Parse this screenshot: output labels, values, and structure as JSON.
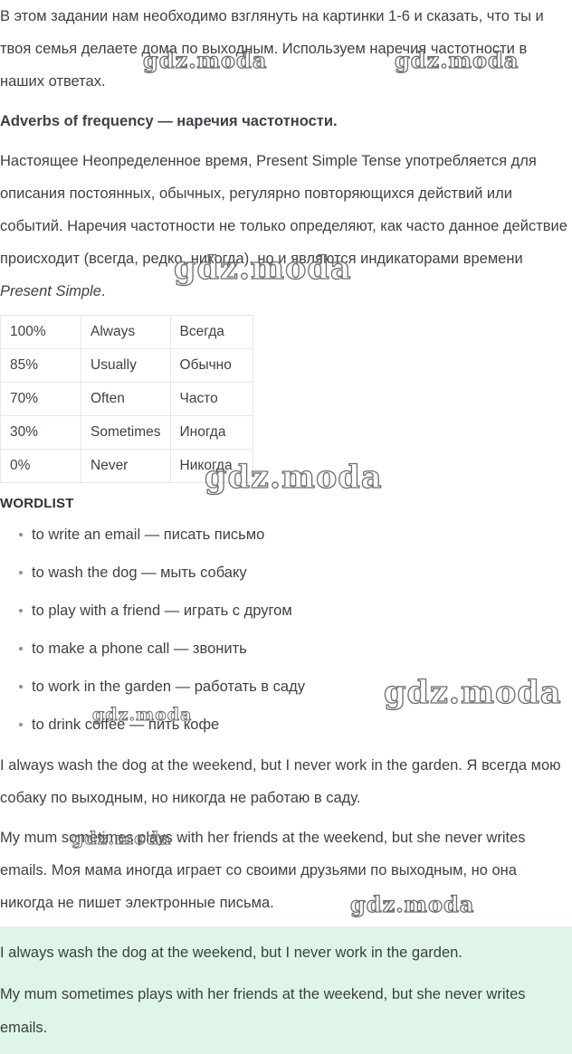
{
  "page": {
    "background": "#ffffff",
    "text_color": "#3d4248",
    "highlight_color": "#dff5e7"
  },
  "watermark": {
    "text": "gdz.moda"
  },
  "intro": "В этом задании нам необходимо взглянуть на картинки 1-6 и сказать, что ты и твоя семья делаете дома по выходным. Используем наречия частотности в наших ответах.",
  "heading": "Adverbs of frequency — наречия частотности.",
  "explanation": {
    "before_italic": "Настоящее Неопределенное время, Present Simple Tense употребляется для описания постоянных, обычных, регулярно повторяющихся действий или событий. Наречия частотности не только определяют, как часто данное действие происходит (всегда, редко, никогда), но и являются индикаторами времени ",
    "italic": "Present Simple",
    "after_italic": "."
  },
  "frequency_table": {
    "rows": [
      {
        "percent": "100%",
        "english": "Always",
        "russian": "Всегда"
      },
      {
        "percent": "85%",
        "english": "Usually",
        "russian": "Обычно"
      },
      {
        "percent": "70%",
        "english": "Often",
        "russian": "Часто"
      },
      {
        "percent": "30%",
        "english": "Sometimes",
        "russian": "Иногда"
      },
      {
        "percent": "0%",
        "english": "Never",
        "russian": "Никогда"
      }
    ]
  },
  "wordlist": {
    "title": "WORDLIST",
    "items": [
      "to write an email — писать письмо",
      "to wash the dog — мыть собаку",
      "to play with a friend — играть с другом",
      "to make a phone call — звонить",
      "to work in the garden — работать в саду",
      "to drink coffee — пить кофе"
    ]
  },
  "examples": [
    "I always wash the dog at the weekend, but I never work in the garden. Я всегда мою собаку по выходным, но никогда не работаю в саду.",
    "My mum sometimes plays with her friends at the weekend, but she never writes emails. Моя мама иногда играет со своими друзьями по выходным, но она никогда не пишет электронные письма."
  ],
  "answer": {
    "lines": [
      "I always wash the dog at the weekend, but I never work in the garden.",
      "My mum sometimes plays with her friends at the weekend, but she never writes emails."
    ]
  }
}
